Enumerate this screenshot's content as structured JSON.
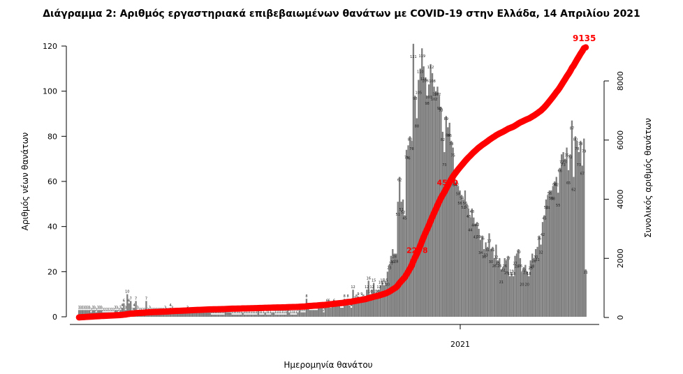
{
  "chart_data": {
    "type": "bar",
    "title": "Διάγραμμα 2: Αριθμός εργαστηριακά επιβεβαιωμένων θανάτων με COVID-19 στην Ελλάδα, 14 Απριλίου 2021",
    "xlabel": "Ημερομηνία θανάτου",
    "ylabel": "Αριθμός νέων θανάτων",
    "ylabel_right": "Συνολικός αριθμός θανάτων",
    "x_tick_label": "2021",
    "ylim": [
      0,
      120
    ],
    "y_ticks": [
      0,
      20,
      40,
      60,
      80,
      100,
      120
    ],
    "ylim_right": [
      0,
      9100
    ],
    "y_ticks_right": [
      0,
      2000,
      4000,
      6000,
      8000
    ],
    "bar_color": "#7f7f7f",
    "line_color": "#ff0000",
    "series": [
      {
        "name": "",
        "kind": "bar",
        "values": [
          3,
          3,
          3,
          3,
          3,
          3,
          3,
          2,
          3,
          3,
          2,
          3,
          3,
          3,
          2,
          2,
          2,
          2,
          2,
          2,
          2,
          3,
          3,
          2,
          3,
          4,
          6,
          3,
          10,
          6,
          7,
          2,
          4,
          7,
          3,
          2,
          2,
          2,
          2,
          7,
          2,
          3,
          2,
          2,
          2,
          2,
          2,
          2,
          2,
          2,
          3,
          2,
          2,
          4,
          3,
          2,
          2,
          2,
          2,
          2,
          2,
          2,
          2,
          3,
          2,
          2,
          2,
          2,
          2,
          2,
          2,
          2,
          2,
          2,
          2,
          2,
          2,
          1,
          1,
          1,
          1,
          1,
          1,
          1,
          1,
          3,
          2,
          2,
          2,
          1,
          1,
          1,
          1,
          1,
          1,
          2,
          1,
          1,
          1,
          1,
          1,
          1,
          1,
          1,
          3,
          1,
          1,
          1,
          2,
          1,
          1,
          1,
          2,
          2,
          1,
          1,
          1,
          1,
          1,
          1,
          1,
          3,
          2,
          1,
          1,
          1,
          1,
          2,
          3,
          2,
          2,
          2,
          8,
          4,
          3,
          3,
          3,
          3,
          3,
          4,
          4,
          4,
          2,
          4,
          6,
          6,
          4,
          5,
          6,
          5,
          5,
          5,
          4,
          4,
          8,
          6,
          8,
          5,
          4,
          12,
          7,
          8,
          9,
          6,
          9,
          8,
          7,
          12,
          16,
          10,
          12,
          15,
          10,
          10,
          12,
          14,
          15,
          14,
          15,
          20,
          23,
          27,
          30,
          28,
          28,
          51,
          62,
          51,
          52,
          45,
          74,
          76,
          80,
          78,
          121,
          98,
          88,
          105,
          110,
          119,
          111,
          106,
          98,
          103,
          112,
          108,
          102,
          100,
          102,
          98,
          93,
          82,
          73,
          89,
          84,
          86,
          78,
          75,
          64,
          60,
          58,
          56,
          54,
          52,
          56,
          50,
          48,
          44,
          48,
          44,
          41,
          42,
          39,
          34,
          36,
          30,
          33,
          31,
          37,
          30,
          31,
          26,
          32,
          25,
          26,
          21,
          22,
          26,
          25,
          27,
          18,
          19,
          18,
          27,
          28,
          30,
          26,
          20,
          22,
          23,
          20,
          18,
          25,
          28,
          26,
          30,
          31,
          36,
          32,
          42,
          45,
          52,
          54,
          56,
          56,
          58,
          60,
          62,
          55,
          66,
          72,
          73,
          70,
          75,
          65,
          72,
          87,
          62,
          80,
          78,
          73,
          78,
          67,
          79,
          21
        ],
        "annotated_labels": [
          3,
          3,
          3,
          3,
          3,
          3,
          3,
          2,
          3,
          3,
          2,
          3,
          3,
          3,
          2,
          2,
          2,
          2,
          2,
          2,
          2,
          3,
          3,
          2,
          3,
          4,
          6,
          3,
          10,
          6,
          7,
          2,
          4,
          7,
          3,
          2,
          2,
          2,
          2,
          7,
          2,
          3,
          2,
          2,
          2,
          2,
          2,
          2,
          2,
          2,
          3,
          2,
          2,
          4,
          3,
          2,
          2,
          2,
          2,
          2,
          2,
          2,
          2,
          3,
          2,
          2,
          2,
          2,
          2,
          2,
          2,
          2,
          2,
          2,
          2,
          2,
          2,
          1,
          1,
          1,
          1,
          1,
          1,
          1,
          1,
          3,
          2,
          2,
          2,
          1,
          1,
          1,
          1,
          1,
          1,
          2,
          1,
          1,
          1,
          1,
          1,
          1,
          1,
          1,
          3,
          1,
          1,
          1,
          2,
          1,
          1,
          1,
          2,
          2,
          1,
          1,
          1,
          1,
          1,
          1,
          1,
          3,
          2,
          1,
          1,
          1,
          1,
          2,
          3,
          2,
          2,
          2,
          8,
          4,
          3,
          3,
          3,
          3,
          3,
          4,
          4,
          4,
          2,
          4,
          6,
          6,
          4,
          5,
          6,
          5,
          5,
          5,
          4,
          4,
          8,
          6,
          8,
          5,
          4,
          12,
          7,
          8,
          9,
          6,
          9,
          8,
          7,
          12,
          16,
          10,
          12,
          15,
          10,
          10,
          12,
          14,
          15,
          14,
          15,
          20,
          23,
          27,
          30,
          28,
          28,
          51,
          62,
          51,
          52,
          45,
          74,
          76,
          80,
          78,
          121,
          98,
          88,
          105,
          110,
          119,
          111,
          106,
          98,
          103,
          112,
          108,
          102,
          100,
          102,
          98,
          93,
          82,
          73,
          89,
          84,
          86,
          78,
          75,
          64,
          60,
          58,
          56,
          54,
          52,
          56,
          50,
          48,
          44,
          48,
          44,
          41,
          42,
          39,
          34,
          36,
          30,
          33,
          31,
          37,
          30,
          31,
          26,
          32,
          25,
          26,
          21,
          22,
          26,
          25,
          27,
          18,
          19,
          18,
          27,
          28,
          30,
          26,
          20,
          22,
          23,
          20,
          18,
          25,
          28,
          26,
          30,
          31,
          36,
          32,
          42,
          45,
          52,
          54,
          56,
          56,
          58,
          60,
          62,
          55,
          66,
          72,
          73,
          70,
          75,
          65,
          72,
          87,
          62,
          80,
          78,
          73,
          78,
          67,
          79,
          21
        ]
      },
      {
        "name": "",
        "kind": "line",
        "axis": "right"
      }
    ],
    "annotations": [
      {
        "text": "9135",
        "value": 9135
      },
      {
        "text": "4570",
        "value": 4570
      },
      {
        "text": "2278",
        "value": 2278
      }
    ],
    "grid": false,
    "legend": "none"
  }
}
